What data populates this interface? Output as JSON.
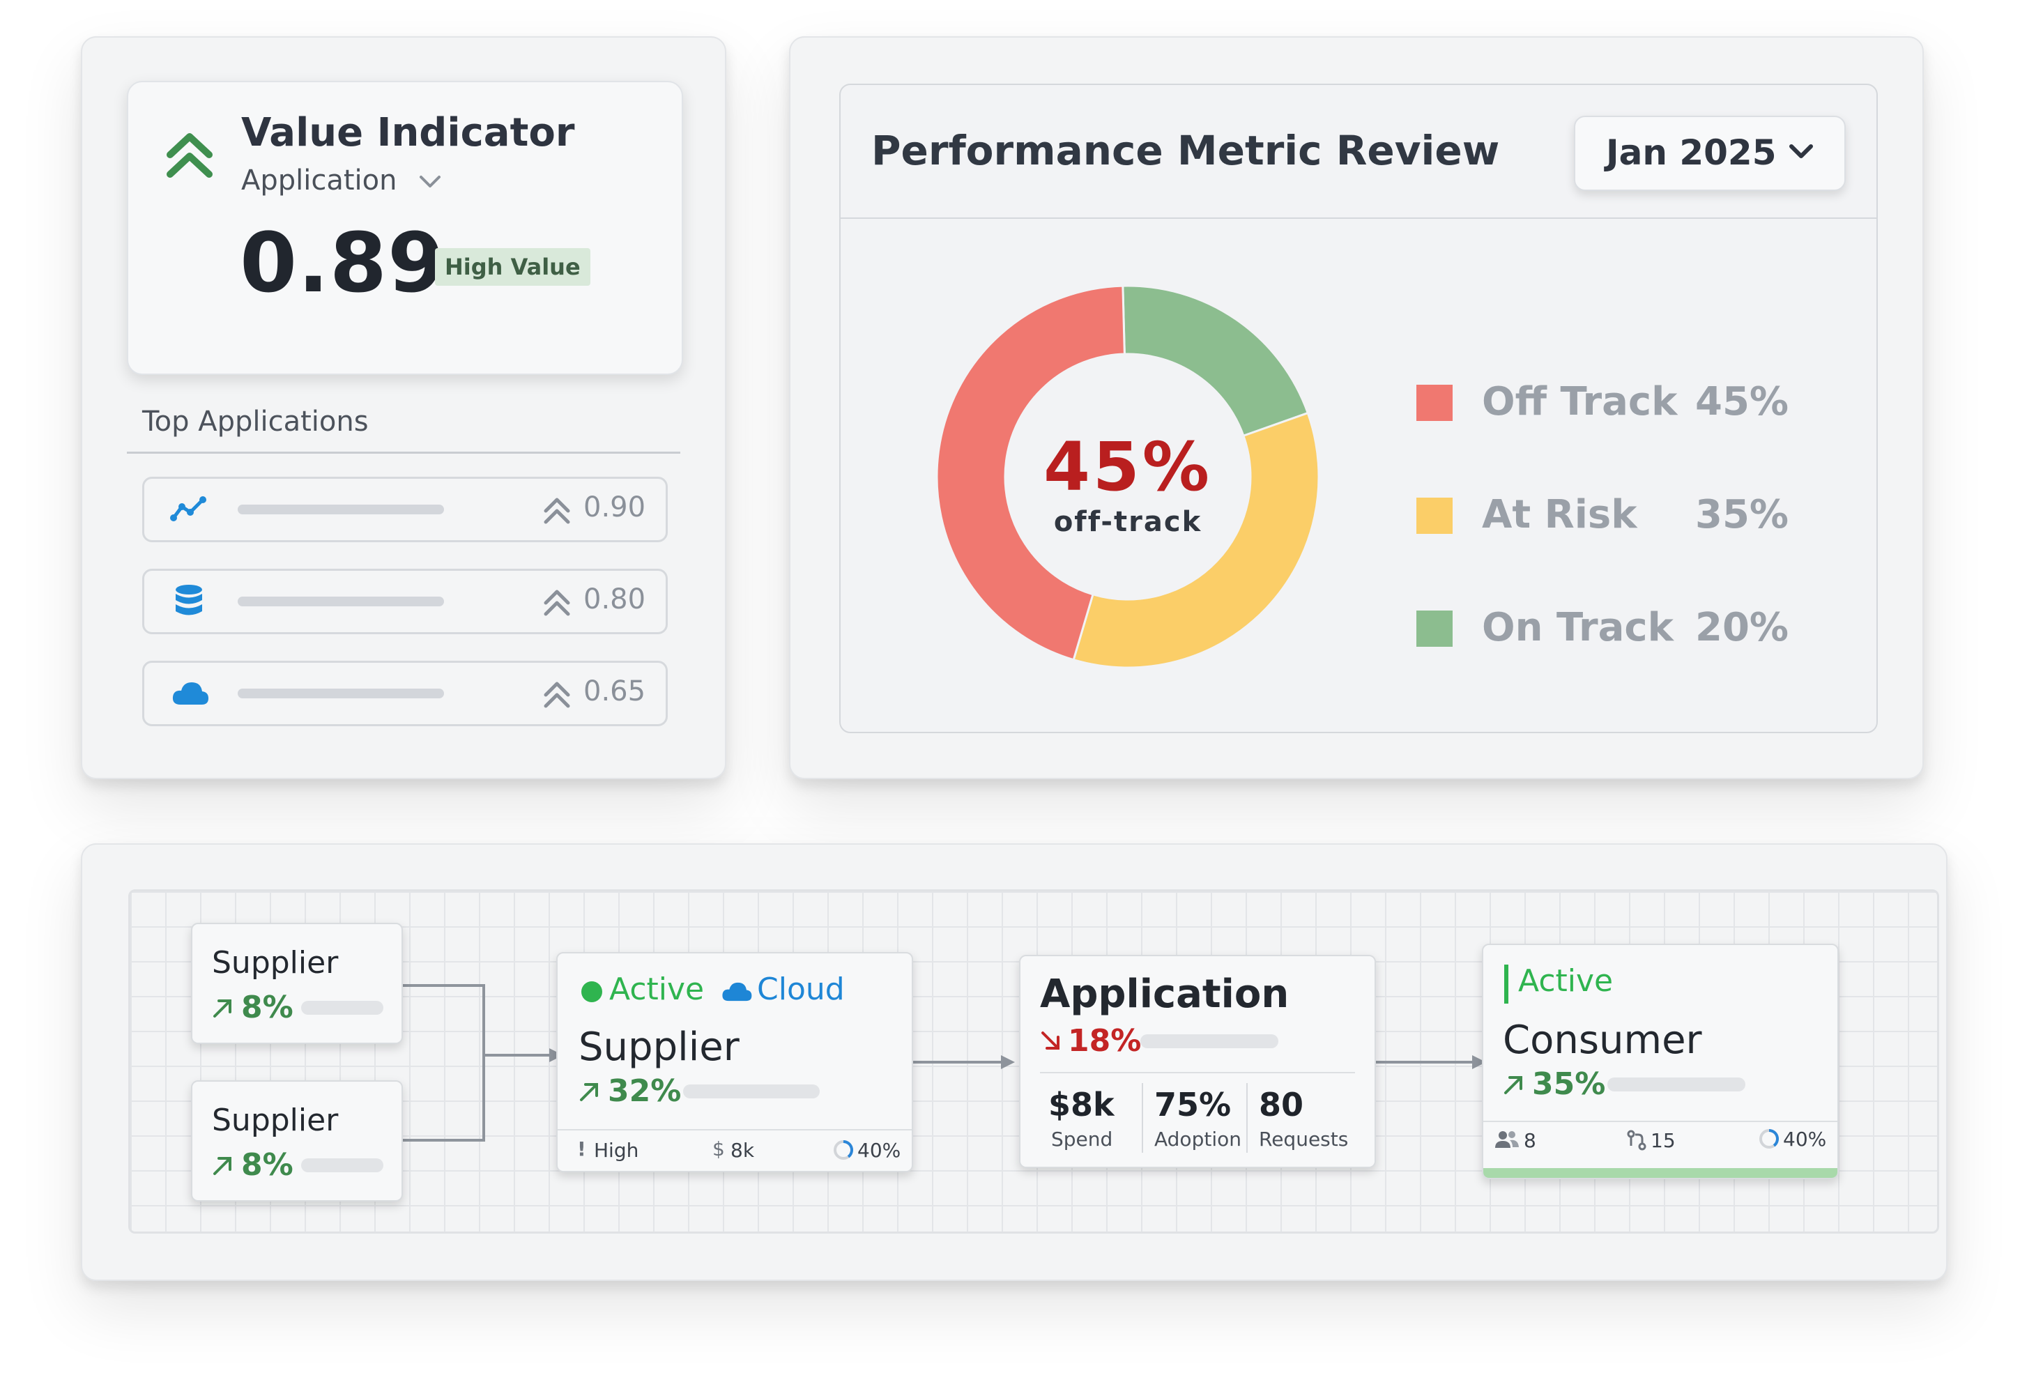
{
  "value_indicator": {
    "title": "Value Indicator",
    "subtitle": "Application",
    "value": "0.89",
    "badge": "High Value",
    "colors": {
      "accent": "#3f8f4f",
      "badge_bg": "#d9e9da"
    }
  },
  "top_applications": {
    "title": "Top Applications",
    "rows": [
      {
        "icon": "trend-line-icon",
        "score": "0.90"
      },
      {
        "icon": "database-icon",
        "score": "0.80"
      },
      {
        "icon": "cloud-icon",
        "score": "0.65"
      }
    ]
  },
  "performance": {
    "title": "Performance Metric Review",
    "date_selector": "Jan 2025",
    "center_value": "45%",
    "center_label": "off-track",
    "chart_data": {
      "type": "pie",
      "series": [
        {
          "name": "Off Track",
          "label": "45%",
          "value": 45,
          "color": "#f07870"
        },
        {
          "name": "At Risk",
          "label": "35%",
          "value": 35,
          "color": "#fbce68"
        },
        {
          "name": "On Track",
          "label": "20%",
          "value": 20,
          "color": "#8cbd8f"
        }
      ]
    }
  },
  "flow": {
    "supplier_a": {
      "label": "Supplier",
      "pct": "8%"
    },
    "supplier_b": {
      "label": "Supplier",
      "pct": "8%"
    },
    "supplier_main": {
      "status": "Active",
      "type": "Cloud",
      "label": "Supplier",
      "pct": "32%",
      "footer": {
        "priority": "High",
        "spend": "8k",
        "progress": "40%"
      }
    },
    "application": {
      "label": "Application",
      "pct": "18%",
      "metrics": [
        {
          "value": "$8k",
          "label": "Spend"
        },
        {
          "value": "75%",
          "label": "Adoption"
        },
        {
          "value": "80",
          "label": "Requests"
        }
      ]
    },
    "consumer": {
      "status": "Active",
      "label": "Consumer",
      "pct": "35%",
      "footer": {
        "users": "8",
        "links": "15",
        "progress": "40%"
      }
    },
    "colors": {
      "up": "#3f8a4d",
      "down": "#c32525",
      "active": "#2fb44f",
      "cloud": "#1e86d6"
    }
  }
}
